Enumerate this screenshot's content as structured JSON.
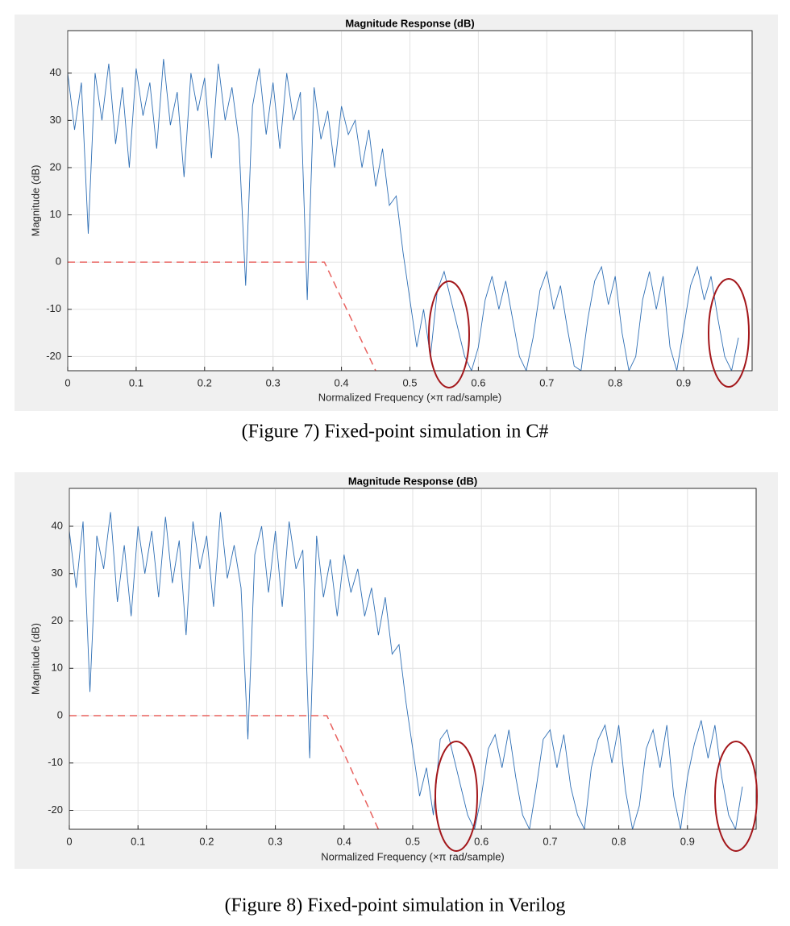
{
  "chart_data": [
    {
      "type": "line",
      "title": "Magnitude Response (dB)",
      "xlabel": "Normalized Frequency (×π rad/sample)",
      "ylabel": "Magnitude (dB)",
      "caption": "(Figure 7) Fixed-point simulation in C#",
      "xlim": [
        0,
        1
      ],
      "ylim": [
        -23,
        49
      ],
      "xticks": [
        0,
        0.1,
        0.2,
        0.3,
        0.4,
        0.5,
        0.6,
        0.7,
        0.8,
        0.9
      ],
      "yticks": [
        -20,
        -10,
        0,
        10,
        20,
        30,
        40
      ],
      "grid": true,
      "series": [
        {
          "color": "#2f6fb5",
          "line_style": "solid",
          "x": [
            0,
            0.01,
            0.02,
            0.03,
            0.04,
            0.05,
            0.06,
            0.07,
            0.08,
            0.09,
            0.1,
            0.11,
            0.12,
            0.13,
            0.14,
            0.15,
            0.16,
            0.17,
            0.18,
            0.19,
            0.2,
            0.21,
            0.22,
            0.23,
            0.24,
            0.25,
            0.26,
            0.27,
            0.28,
            0.29,
            0.3,
            0.31,
            0.32,
            0.33,
            0.34,
            0.35,
            0.36,
            0.37,
            0.38,
            0.39,
            0.4,
            0.41,
            0.42,
            0.43,
            0.44,
            0.45,
            0.46,
            0.47,
            0.48,
            0.49,
            0.5,
            0.51,
            0.52,
            0.53,
            0.54,
            0.55,
            0.56,
            0.57,
            0.58,
            0.59,
            0.6,
            0.61,
            0.62,
            0.63,
            0.64,
            0.65,
            0.66,
            0.67,
            0.68,
            0.69,
            0.7,
            0.71,
            0.72,
            0.73,
            0.74,
            0.75,
            0.76,
            0.77,
            0.78,
            0.79,
            0.8,
            0.81,
            0.82,
            0.83,
            0.84,
            0.85,
            0.86,
            0.87,
            0.88,
            0.89,
            0.9,
            0.91,
            0.92,
            0.93,
            0.94,
            0.95,
            0.96,
            0.97,
            0.98
          ],
          "values": [
            40,
            28,
            38,
            6,
            40,
            30,
            42,
            25,
            37,
            20,
            41,
            31,
            38,
            24,
            43,
            29,
            36,
            18,
            40,
            32,
            39,
            22,
            42,
            30,
            37,
            26,
            -5,
            33,
            41,
            27,
            38,
            24,
            40,
            30,
            36,
            -8,
            37,
            26,
            32,
            20,
            33,
            27,
            30,
            20,
            28,
            16,
            24,
            12,
            14,
            2,
            -8,
            -18,
            -10,
            -20,
            -6,
            -2,
            -8,
            -14,
            -20,
            -23,
            -18,
            -8,
            -3,
            -10,
            -4,
            -12,
            -20,
            -23,
            -16,
            -6,
            -2,
            -10,
            -5,
            -14,
            -22,
            -23,
            -12,
            -4,
            -1,
            -9,
            -3,
            -15,
            -23,
            -20,
            -8,
            -2,
            -10,
            -3,
            -18,
            -23,
            -14,
            -5,
            -1,
            -8,
            -3,
            -12,
            -20,
            -23,
            -16
          ]
        },
        {
          "color": "#e8625f",
          "line_style": "dashed",
          "x": [
            0,
            0.375,
            0.45
          ],
          "values": [
            0,
            0,
            -23
          ]
        }
      ]
    },
    {
      "type": "line",
      "title": "Magnitude Response (dB)",
      "xlabel": "Normalized Frequency (×π rad/sample)",
      "ylabel": "Magnitude (dB)",
      "caption": "(Figure 8) Fixed-point simulation in Verilog",
      "xlim": [
        0,
        1
      ],
      "ylim": [
        -24,
        48
      ],
      "xticks": [
        0,
        0.1,
        0.2,
        0.3,
        0.4,
        0.5,
        0.6,
        0.7,
        0.8,
        0.9
      ],
      "yticks": [
        -20,
        -10,
        0,
        10,
        20,
        30,
        40
      ],
      "grid": true,
      "series": [
        {
          "color": "#2f6fb5",
          "line_style": "solid",
          "x": [
            0,
            0.01,
            0.02,
            0.03,
            0.04,
            0.05,
            0.06,
            0.07,
            0.08,
            0.09,
            0.1,
            0.11,
            0.12,
            0.13,
            0.14,
            0.15,
            0.16,
            0.17,
            0.18,
            0.19,
            0.2,
            0.21,
            0.22,
            0.23,
            0.24,
            0.25,
            0.26,
            0.27,
            0.28,
            0.29,
            0.3,
            0.31,
            0.32,
            0.33,
            0.34,
            0.35,
            0.36,
            0.37,
            0.38,
            0.39,
            0.4,
            0.41,
            0.42,
            0.43,
            0.44,
            0.45,
            0.46,
            0.47,
            0.48,
            0.49,
            0.5,
            0.51,
            0.52,
            0.53,
            0.54,
            0.55,
            0.56,
            0.57,
            0.58,
            0.59,
            0.6,
            0.61,
            0.62,
            0.63,
            0.64,
            0.65,
            0.66,
            0.67,
            0.68,
            0.69,
            0.7,
            0.71,
            0.72,
            0.73,
            0.74,
            0.75,
            0.76,
            0.77,
            0.78,
            0.79,
            0.8,
            0.81,
            0.82,
            0.83,
            0.84,
            0.85,
            0.86,
            0.87,
            0.88,
            0.89,
            0.9,
            0.91,
            0.92,
            0.93,
            0.94,
            0.95,
            0.96,
            0.97,
            0.98
          ],
          "values": [
            39,
            27,
            41,
            5,
            38,
            31,
            43,
            24,
            36,
            21,
            40,
            30,
            39,
            25,
            42,
            28,
            37,
            17,
            41,
            31,
            38,
            23,
            43,
            29,
            36,
            27,
            -5,
            34,
            40,
            26,
            39,
            23,
            41,
            31,
            35,
            -9,
            38,
            25,
            33,
            21,
            34,
            26,
            31,
            21,
            27,
            17,
            25,
            13,
            15,
            3,
            -7,
            -17,
            -11,
            -21,
            -5,
            -3,
            -9,
            -15,
            -21,
            -24,
            -17,
            -7,
            -4,
            -11,
            -3,
            -13,
            -21,
            -24,
            -15,
            -5,
            -3,
            -11,
            -4,
            -15,
            -21,
            -24,
            -11,
            -5,
            -2,
            -10,
            -2,
            -16,
            -24,
            -19,
            -7,
            -3,
            -11,
            -2,
            -17,
            -24,
            -13,
            -6,
            -1,
            -9,
            -2,
            -13,
            -21,
            -24,
            -15
          ]
        },
        {
          "color": "#e8625f",
          "line_style": "dashed",
          "x": [
            0,
            0.375,
            0.45
          ],
          "values": [
            0,
            0,
            -24
          ]
        }
      ]
    }
  ]
}
